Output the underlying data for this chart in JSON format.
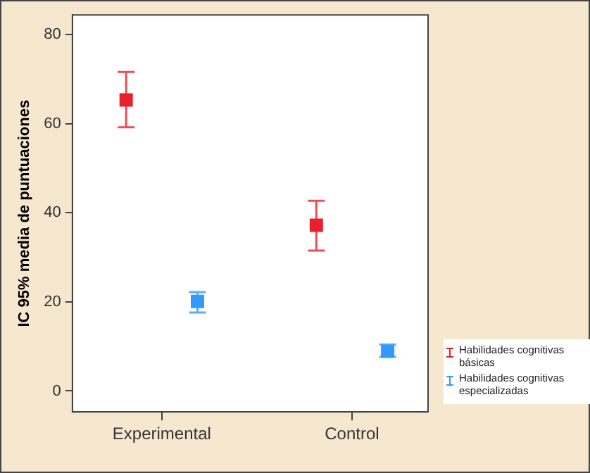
{
  "chart_data": {
    "type": "scatter",
    "ylabel": "IC 95% media de puntuaciones",
    "categories": [
      "Experimental",
      "Control"
    ],
    "series": [
      {
        "name": "Habilidades cognitivas básicas",
        "color": "#e8202a",
        "values": [
          65.3,
          37.2
        ],
        "errors": [
          [
            59.2,
            71.6
          ],
          [
            31.5,
            42.7
          ]
        ]
      },
      {
        "name": "Habilidades cognitivas especializadas",
        "color": "#3399ff",
        "values": [
          20.1,
          8.9
        ],
        "errors": [
          [
            17.6,
            22.2
          ],
          [
            7.7,
            10.4
          ]
        ]
      }
    ],
    "ylim": [
      -4.7,
      84.4
    ],
    "yticks": [
      0,
      20,
      40,
      60,
      80
    ],
    "grid": false,
    "legend": "right",
    "marker": "square"
  }
}
